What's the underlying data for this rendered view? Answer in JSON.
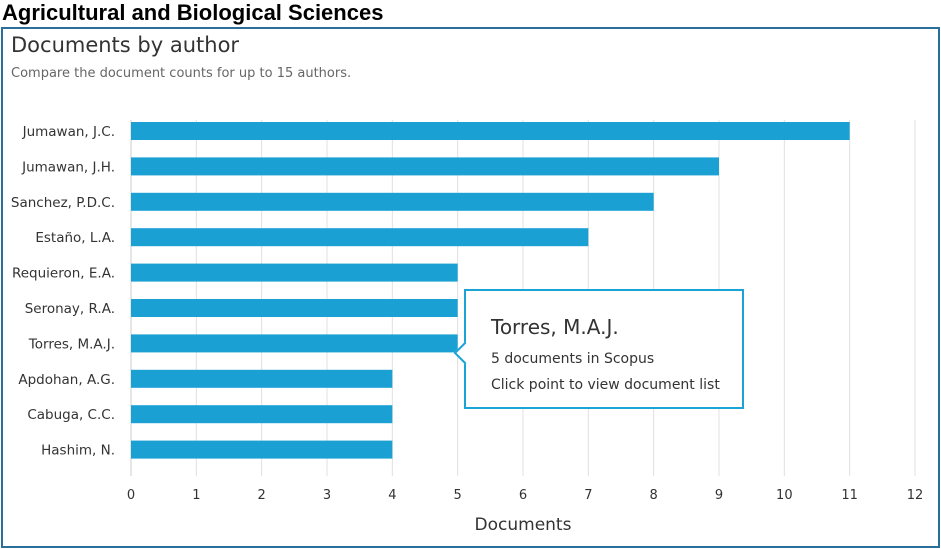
{
  "page": {
    "heading": "Agricultural and Biological Sciences"
  },
  "panel": {
    "title": "Documents by author",
    "subtitle": "Compare the document counts for up to 15 authors."
  },
  "tooltip": {
    "title": "Torres, M.A.J.",
    "line1": "5 documents in Scopus",
    "line2": "Click point to view document list"
  },
  "colors": {
    "bar": "#1aa0d2",
    "grid": "#e0e0e0",
    "border": "#2a6f9b"
  },
  "chart_data": {
    "type": "bar",
    "orientation": "horizontal",
    "categories": [
      "Jumawan, J.C.",
      "Jumawan, J.H.",
      "Sanchez, P.D.C.",
      "Estaño, L.A.",
      "Requieron, E.A.",
      "Seronay, R.A.",
      "Torres, M.A.J.",
      "Apdohan, A.G.",
      "Cabuga, C.C.",
      "Hashim, N."
    ],
    "values": [
      11,
      9,
      8,
      7,
      5,
      5,
      5,
      4,
      4,
      4
    ],
    "xlabel": "Documents",
    "xlim": [
      0,
      12
    ],
    "xticks": [
      0,
      1,
      2,
      3,
      4,
      5,
      6,
      7,
      8,
      9,
      10,
      11,
      12
    ],
    "grid": true
  }
}
